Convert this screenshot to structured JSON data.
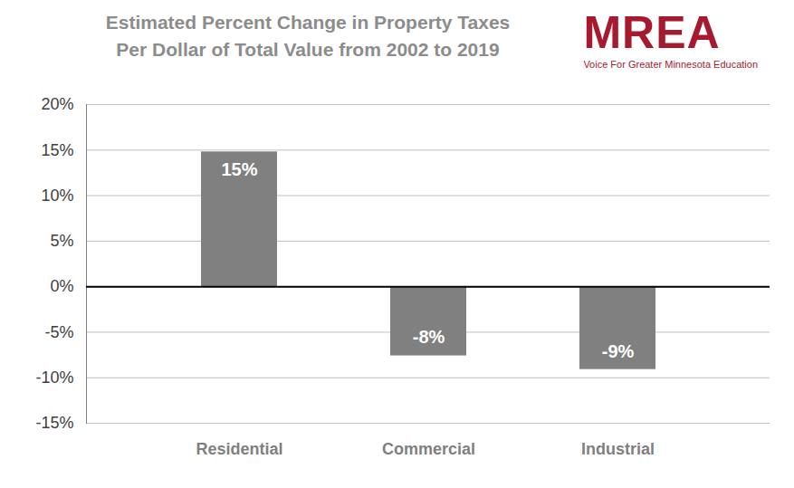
{
  "chart_data": {
    "type": "bar",
    "title": [
      "Estimated Percent Change in Property Taxes",
      "Per Dollar of Total Value from 2002 to 2019"
    ],
    "categories": [
      "Residential",
      "Commercial",
      "Industrial"
    ],
    "values": [
      14.8,
      -7.6,
      -9.1
    ],
    "value_labels": [
      "15%",
      "-8%",
      "-9%"
    ],
    "data_labels": true,
    "color": "#808080",
    "ylim": [
      -15,
      20
    ],
    "yticks": [
      {
        "value": -15,
        "label": "-15%"
      },
      {
        "value": -10,
        "label": "-10%"
      },
      {
        "value": -5,
        "label": "-5%"
      },
      {
        "value": 0,
        "label": "0%"
      },
      {
        "value": 5,
        "label": "5%"
      },
      {
        "value": 10,
        "label": "10%"
      },
      {
        "value": 15,
        "label": "15%"
      },
      {
        "value": 20,
        "label": "20%"
      }
    ],
    "grid": true
  },
  "logo": {
    "name": "MREA",
    "tagline": "Voice For Greater Minnesota Education"
  }
}
